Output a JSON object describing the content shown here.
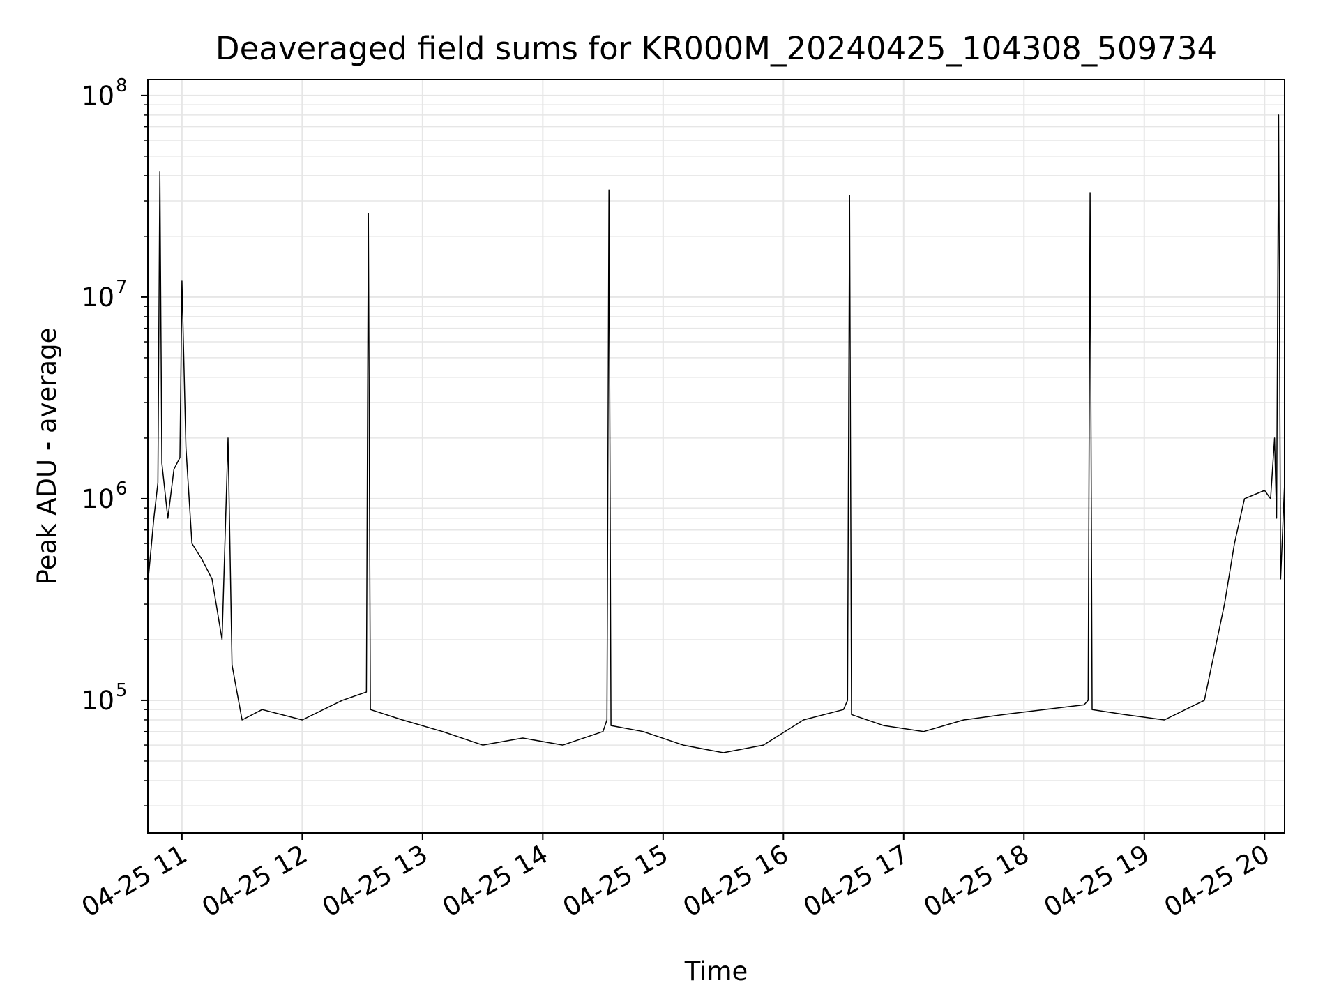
{
  "chart_data": {
    "type": "line",
    "title": "Deaveraged field sums for KR000M_20240425_104308_509734",
    "xlabel": "Time",
    "ylabel": "Peak ADU - average",
    "yscale": "log",
    "grid": true,
    "line_color": "#000000",
    "grid_color": "#e6e6e6",
    "xlim": [
      "2024-04-25 10:43",
      "2024-04-25 20:10"
    ],
    "ylim": [
      22000,
      120000000
    ],
    "x_ticks": [
      {
        "t": "2024-04-25 11:00",
        "label": "04-25 11"
      },
      {
        "t": "2024-04-25 12:00",
        "label": "04-25 12"
      },
      {
        "t": "2024-04-25 13:00",
        "label": "04-25 13"
      },
      {
        "t": "2024-04-25 14:00",
        "label": "04-25 14"
      },
      {
        "t": "2024-04-25 15:00",
        "label": "04-25 15"
      },
      {
        "t": "2024-04-25 16:00",
        "label": "04-25 16"
      },
      {
        "t": "2024-04-25 17:00",
        "label": "04-25 17"
      },
      {
        "t": "2024-04-25 18:00",
        "label": "04-25 18"
      },
      {
        "t": "2024-04-25 19:00",
        "label": "04-25 19"
      },
      {
        "t": "2024-04-25 20:00",
        "label": "04-25 20"
      }
    ],
    "y_ticks": [
      {
        "value": 100000,
        "base": "10",
        "exp": "5"
      },
      {
        "value": 1000000,
        "base": "10",
        "exp": "6"
      },
      {
        "value": 10000000,
        "base": "10",
        "exp": "7"
      },
      {
        "value": 100000000,
        "base": "10",
        "exp": "8"
      }
    ],
    "series": [
      {
        "x": [
          "2024-04-25 10:43",
          "2024-04-25 10:46",
          "2024-04-25 10:48",
          "2024-04-25 10:49",
          "2024-04-25 10:50",
          "2024-04-25 10:53",
          "2024-04-25 10:56",
          "2024-04-25 10:59",
          "2024-04-25 11:00",
          "2024-04-25 11:02",
          "2024-04-25 11:05",
          "2024-04-25 11:10",
          "2024-04-25 11:15",
          "2024-04-25 11:20",
          "2024-04-25 11:23",
          "2024-04-25 11:25",
          "2024-04-25 11:30",
          "2024-04-25 11:40",
          "2024-04-25 12:00",
          "2024-04-25 12:20",
          "2024-04-25 12:32",
          "2024-04-25 12:33",
          "2024-04-25 12:34",
          "2024-04-25 12:50",
          "2024-04-25 13:10",
          "2024-04-25 13:30",
          "2024-04-25 13:50",
          "2024-04-25 14:10",
          "2024-04-25 14:30",
          "2024-04-25 14:32",
          "2024-04-25 14:33",
          "2024-04-25 14:34",
          "2024-04-25 14:50",
          "2024-04-25 15:10",
          "2024-04-25 15:30",
          "2024-04-25 15:50",
          "2024-04-25 16:10",
          "2024-04-25 16:30",
          "2024-04-25 16:32",
          "2024-04-25 16:33",
          "2024-04-25 16:34",
          "2024-04-25 16:50",
          "2024-04-25 17:10",
          "2024-04-25 17:30",
          "2024-04-25 17:50",
          "2024-04-25 18:10",
          "2024-04-25 18:30",
          "2024-04-25 18:32",
          "2024-04-25 18:33",
          "2024-04-25 18:34",
          "2024-04-25 18:50",
          "2024-04-25 19:10",
          "2024-04-25 19:30",
          "2024-04-25 19:40",
          "2024-04-25 19:45",
          "2024-04-25 19:50",
          "2024-04-25 20:00",
          "2024-04-25 20:03",
          "2024-04-25 20:05",
          "2024-04-25 20:06",
          "2024-04-25 20:07",
          "2024-04-25 20:08",
          "2024-04-25 20:10"
        ],
        "y": [
          380000,
          800000,
          1200000,
          42000000,
          1500000,
          800000,
          1400000,
          1600000,
          12000000,
          1800000,
          600000,
          500000,
          400000,
          200000,
          2000000,
          150000,
          80000,
          90000,
          80000,
          100000,
          110000,
          26000000,
          90000,
          80000,
          70000,
          60000,
          65000,
          60000,
          70000,
          80000,
          34000000,
          75000,
          70000,
          60000,
          55000,
          60000,
          80000,
          90000,
          100000,
          32000000,
          85000,
          75000,
          70000,
          80000,
          85000,
          90000,
          95000,
          100000,
          33000000,
          90000,
          85000,
          80000,
          100000,
          300000,
          600000,
          1000000,
          1100000,
          1000000,
          2000000,
          800000,
          80000000,
          400000,
          1200000
        ]
      }
    ]
  }
}
